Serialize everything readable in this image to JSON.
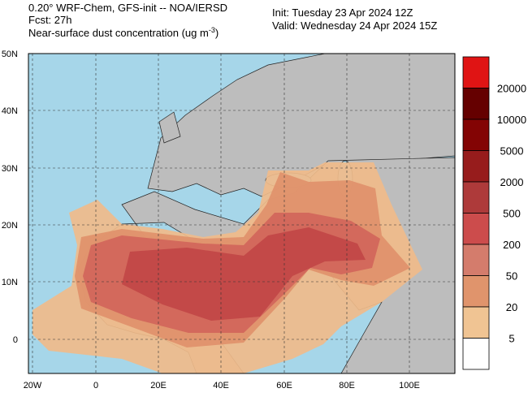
{
  "header": {
    "model": "0.20° WRF-Chem, GFS-init -- NOA/IERSD",
    "fcst": "Fcst: 27h",
    "field": "Near-surface dust concentration (ug m",
    "field_sup": "-3",
    "field_end": ")",
    "init": "Init: Tuesday 23 Apr 2024  12Z",
    "valid": "Valid: Wednesday 24 Apr 2024  15Z"
  },
  "map": {
    "lat_labels": [
      "50N",
      "40N",
      "30N",
      "20N",
      "10N",
      "0"
    ],
    "lon_labels": [
      "20W",
      "0",
      "20E",
      "40E",
      "60E",
      "80E",
      "100E"
    ]
  },
  "legend": {
    "labels": [
      "20000",
      "10000",
      "5000",
      "2000",
      "500",
      "200",
      "50",
      "20",
      "5"
    ],
    "colors": [
      "#e01414",
      "#650000",
      "#830404",
      "#971c1c",
      "#ae3a3a",
      "#cc4c4c",
      "#d47c6c",
      "#e0946c",
      "#f0c493",
      "#ffffff"
    ]
  }
}
